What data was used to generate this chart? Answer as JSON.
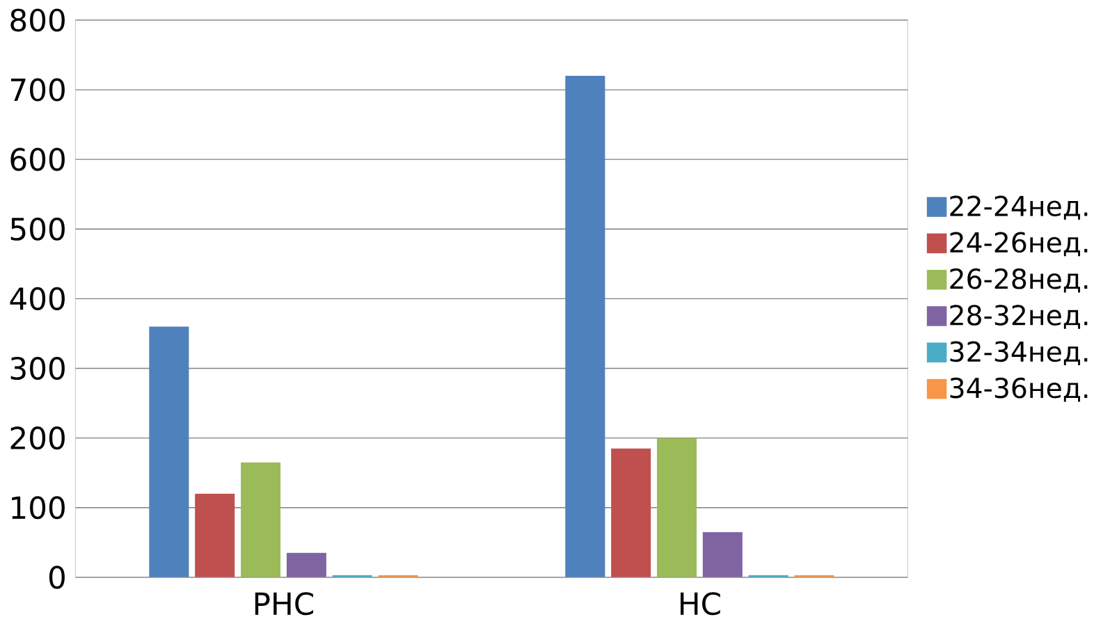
{
  "chart_data": {
    "type": "bar",
    "categories": [
      "РНС",
      "НС"
    ],
    "series": [
      {
        "name": "22-24нед.",
        "color": "#4f81bd",
        "values": [
          360,
          720
        ]
      },
      {
        "name": "24-26нед.",
        "color": "#c0504d",
        "values": [
          120,
          185
        ]
      },
      {
        "name": "26-28нед.",
        "color": "#9bbb59",
        "values": [
          165,
          200
        ]
      },
      {
        "name": "28-32нед.",
        "color": "#8064a2",
        "values": [
          35,
          65
        ]
      },
      {
        "name": "32-34нед.",
        "color": "#4bacc6",
        "values": [
          3,
          3
        ]
      },
      {
        "name": "34-36нед.",
        "color": "#f79646",
        "values": [
          3,
          3
        ]
      }
    ],
    "ylim": [
      0,
      800
    ],
    "yticks": [
      0,
      100,
      200,
      300,
      400,
      500,
      600,
      700,
      800
    ],
    "grid": "y",
    "legend": "right"
  }
}
